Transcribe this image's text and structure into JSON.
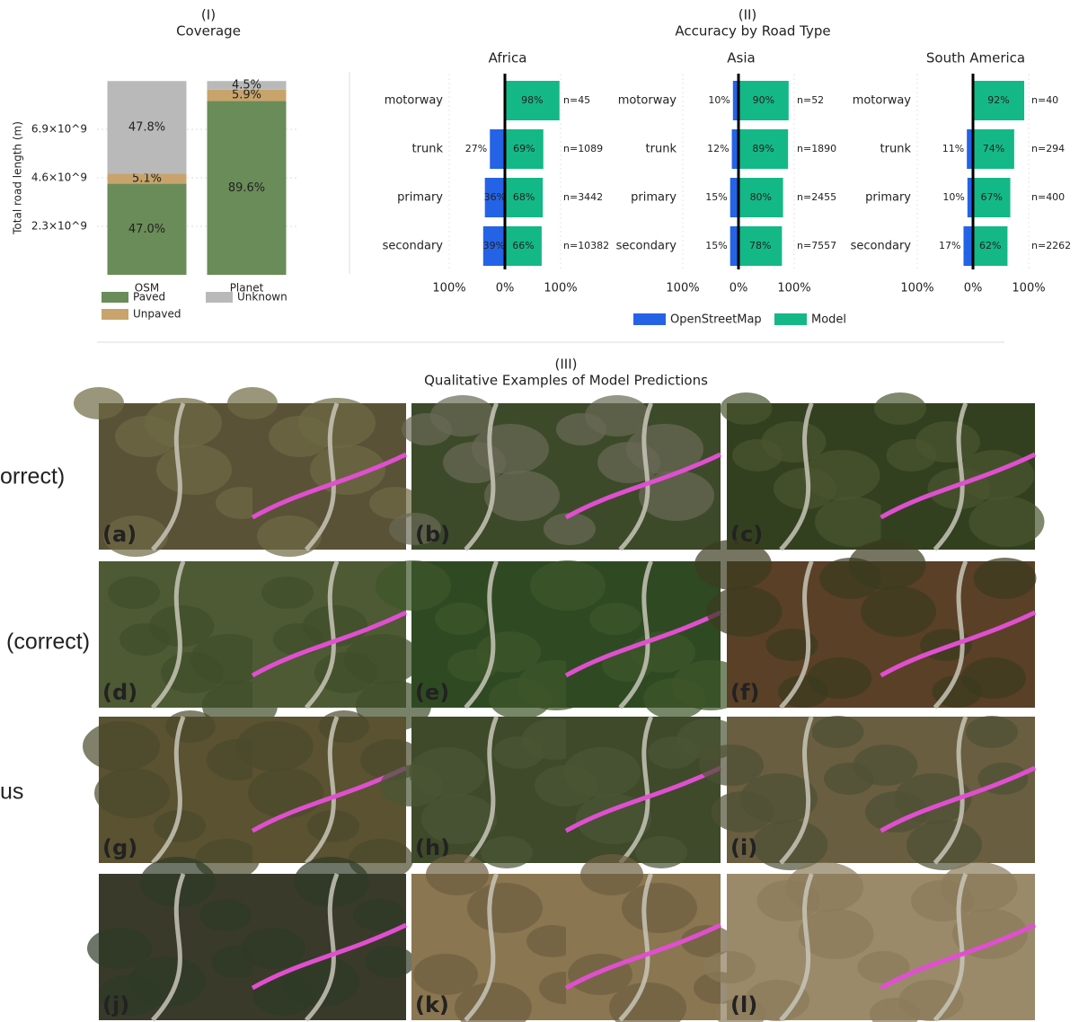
{
  "sections": [
    {
      "label": "(I)",
      "title": "Coverage"
    },
    {
      "label": "(II)",
      "title": "Accuracy by Road Type"
    },
    {
      "label": "(III)",
      "title": "Qualitative Examples of Model Predictions"
    }
  ],
  "chart_data": [
    {
      "type": "bar",
      "stacked": true,
      "ylabel": "Total road length (m)",
      "categories": [
        "OSM",
        "Planet"
      ],
      "series": [
        {
          "name": "Paved",
          "color": "#6a8c58",
          "values": [
            4320000000,
            8240000000
          ],
          "share_labels": [
            "47.0%",
            "89.6%"
          ]
        },
        {
          "name": "Unpaved",
          "color": "#c8a46c",
          "values": [
            470000000,
            540000000
          ],
          "share_labels": [
            "5.1%",
            "5.9%"
          ]
        },
        {
          "name": "Unknown",
          "color": "#b9b9b9",
          "values": [
            4400000000,
            410000000
          ],
          "share_labels": [
            "47.8%",
            "4.5%"
          ]
        }
      ],
      "ylim": [
        0,
        9200000000
      ],
      "yticks": [
        {
          "value": 2300000000,
          "label": "2.3×10^9"
        },
        {
          "value": 4600000000,
          "label": "4.6×10^9"
        },
        {
          "value": 6900000000,
          "label": "6.9×10^9"
        }
      ],
      "grid": true
    },
    {
      "type": "hbar",
      "title": "Africa",
      "categories": [
        "motorway",
        "trunk",
        "primary",
        "secondary"
      ],
      "series": [
        {
          "name": "OpenStreetMap",
          "color": "#2563e6",
          "values": [
            null,
            -27,
            -36,
            -39
          ],
          "value_labels": [
            null,
            "27%",
            "36%",
            "39%"
          ]
        },
        {
          "name": "Model",
          "color": "#14b886",
          "values": [
            98,
            69,
            68,
            66
          ],
          "value_labels": [
            "98%",
            "69%",
            "68%",
            "66%"
          ]
        }
      ],
      "n_labels": [
        "n=45",
        "n=1089",
        "n=3442",
        "n=10382"
      ],
      "xlim": [
        -100,
        100
      ],
      "xticks": [
        {
          "value": -100,
          "label": "100%"
        },
        {
          "value": 0,
          "label": "0%"
        },
        {
          "value": 100,
          "label": "100%"
        }
      ],
      "grid": true
    },
    {
      "type": "hbar",
      "title": "Asia",
      "categories": [
        "motorway",
        "trunk",
        "primary",
        "secondary"
      ],
      "series": [
        {
          "name": "OpenStreetMap",
          "color": "#2563e6",
          "values": [
            -10,
            -12,
            -15,
            -15
          ],
          "value_labels": [
            "10%",
            "12%",
            "15%",
            "15%"
          ]
        },
        {
          "name": "Model",
          "color": "#14b886",
          "values": [
            90,
            89,
            80,
            78
          ],
          "value_labels": [
            "90%",
            "89%",
            "80%",
            "78%"
          ]
        }
      ],
      "n_labels": [
        "n=52",
        "n=1890",
        "n=2455",
        "n=7557"
      ],
      "xlim": [
        -100,
        100
      ],
      "xticks": [
        {
          "value": -100,
          "label": "100%"
        },
        {
          "value": 0,
          "label": "0%"
        },
        {
          "value": 100,
          "label": "100%"
        }
      ],
      "grid": true
    },
    {
      "type": "hbar",
      "title": "South America",
      "categories": [
        "motorway",
        "trunk",
        "primary",
        "secondary"
      ],
      "series": [
        {
          "name": "OpenStreetMap",
          "color": "#2563e6",
          "values": [
            null,
            -11,
            -10,
            -17
          ],
          "value_labels": [
            null,
            "11%",
            "10%",
            "17%"
          ]
        },
        {
          "name": "Model",
          "color": "#14b886",
          "values": [
            92,
            74,
            67,
            62
          ],
          "value_labels": [
            "92%",
            "74%",
            "67%",
            "62%"
          ]
        }
      ],
      "n_labels": [
        "n=40",
        "n=294",
        "n=400",
        "n=2262"
      ],
      "xlim": [
        -100,
        100
      ],
      "xticks": [
        {
          "value": -100,
          "label": "100%"
        },
        {
          "value": 0,
          "label": "0%"
        },
        {
          "value": 100,
          "label": "100%"
        }
      ],
      "grid": true
    }
  ],
  "row_labels": [
    "orrect)",
    "(correct)",
    "us"
  ],
  "panels": [
    "(a)",
    "(b)",
    "(c)",
    "(d)",
    "(e)",
    "(f)",
    "(g)",
    "(h)",
    "(i)",
    "(j)",
    "(k)",
    "(l)"
  ]
}
